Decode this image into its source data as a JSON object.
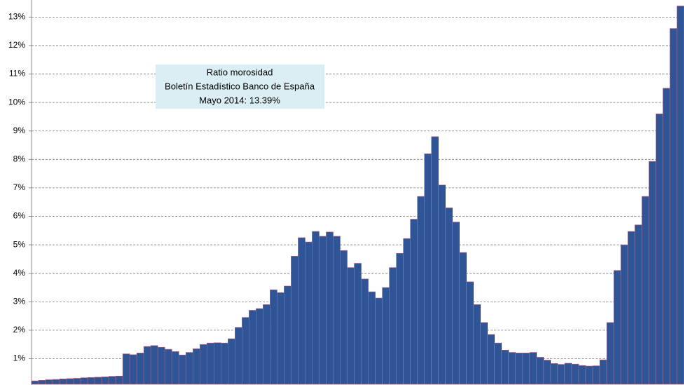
{
  "chart_data": {
    "type": "bar",
    "annotation": [
      "Ratio morosidad",
      "Boletín Estadístico Banco de España",
      "Mayo 2014: 13.39%"
    ],
    "values": [
      0.22,
      0.24,
      0.26,
      0.27,
      0.29,
      0.3,
      0.31,
      0.33,
      0.34,
      0.35,
      0.36,
      0.38,
      0.39,
      1.17,
      1.14,
      1.2,
      1.43,
      1.46,
      1.4,
      1.33,
      1.25,
      1.13,
      1.22,
      1.35,
      1.5,
      1.55,
      1.56,
      1.55,
      1.7,
      2.1,
      2.45,
      2.7,
      2.76,
      2.9,
      3.42,
      3.32,
      3.55,
      4.6,
      5.25,
      5.1,
      5.47,
      5.3,
      5.45,
      5.3,
      4.8,
      4.2,
      4.35,
      3.8,
      3.35,
      3.13,
      3.5,
      4.2,
      4.7,
      5.22,
      5.9,
      6.7,
      8.2,
      8.8,
      7.1,
      6.3,
      5.8,
      4.73,
      3.7,
      2.9,
      2.27,
      1.85,
      1.55,
      1.3,
      1.22,
      1.2,
      1.2,
      1.22,
      1.05,
      0.95,
      0.83,
      0.8,
      0.84,
      0.81,
      0.76,
      0.74,
      0.75,
      0.96,
      2.27,
      4.1,
      5.0,
      5.47,
      5.7,
      6.7,
      7.93,
      9.6,
      10.5,
      12.6,
      13.39
    ],
    "color": "#2f5597",
    "edge_color": "#d9534f",
    "ylim": [
      0.1,
      13.6
    ],
    "yticks": [
      {
        "value": 1,
        "label": "1%"
      },
      {
        "value": 2,
        "label": "2%"
      },
      {
        "value": 3,
        "label": "3%"
      },
      {
        "value": 4,
        "label": "4%"
      },
      {
        "value": 5,
        "label": "5%"
      },
      {
        "value": 6,
        "label": "6%"
      },
      {
        "value": 7,
        "label": "7%"
      },
      {
        "value": 8,
        "label": "8%"
      },
      {
        "value": 9,
        "label": "9%"
      },
      {
        "value": 10,
        "label": "10%"
      },
      {
        "value": 11,
        "label": "11%"
      },
      {
        "value": 12,
        "label": "12%"
      },
      {
        "value": 13,
        "label": "13%"
      }
    ],
    "grid": true
  }
}
